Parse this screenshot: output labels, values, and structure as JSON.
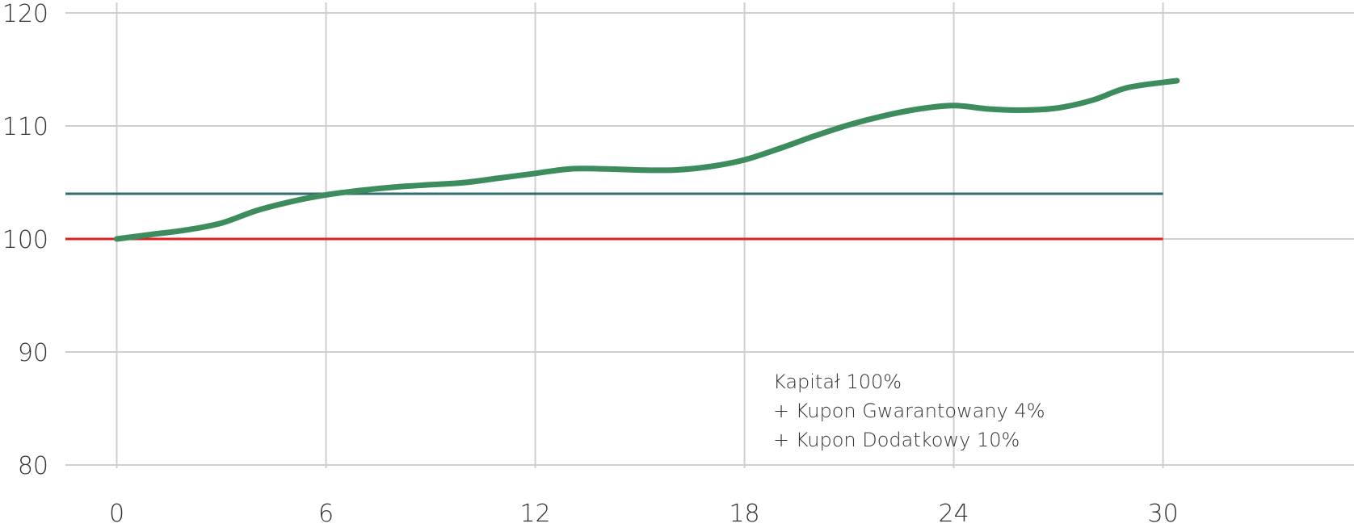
{
  "chart_data": {
    "type": "line",
    "title": "",
    "xlabel": "",
    "ylabel": "",
    "xlim": [
      -2.5,
      35
    ],
    "ylim": [
      79,
      121
    ],
    "x_ticks": [
      0,
      6,
      12,
      18,
      24,
      30
    ],
    "y_ticks": [
      80,
      90,
      100,
      110,
      120
    ],
    "x_tick_labels": [
      "0",
      "6",
      "12",
      "18",
      "24",
      "30"
    ],
    "y_tick_labels": [
      "80",
      "90",
      "100",
      "110",
      "120"
    ],
    "grid": true,
    "series": [
      {
        "color": "#3d8c5e",
        "x": [
          0,
          1,
          2,
          3,
          4,
          5,
          6,
          7,
          8,
          9,
          10,
          11,
          12,
          13,
          14,
          15,
          16,
          17,
          18,
          19,
          20,
          21,
          22,
          23,
          24,
          25,
          26,
          27,
          28,
          29,
          30.4
        ],
        "y": [
          100.0,
          100.4,
          100.8,
          101.4,
          102.5,
          103.3,
          103.9,
          104.3,
          104.6,
          104.8,
          105.0,
          105.4,
          105.8,
          106.2,
          106.2,
          106.1,
          106.1,
          106.4,
          107.0,
          108.0,
          109.1,
          110.1,
          110.9,
          111.5,
          111.8,
          111.5,
          111.4,
          111.6,
          112.3,
          113.4,
          114.0
        ]
      },
      {
        "color": "#2e6e6e",
        "x": [
          -1.5,
          30
        ],
        "y": [
          104,
          104
        ]
      },
      {
        "color": "#e02020",
        "x": [
          -1.5,
          30
        ],
        "y": [
          100,
          100
        ]
      }
    ],
    "annotations": [
      "Kapitał 100%",
      "+ Kupon Gwarantowany 4%",
      "+ Kupon Dodatkowy 10%"
    ]
  }
}
